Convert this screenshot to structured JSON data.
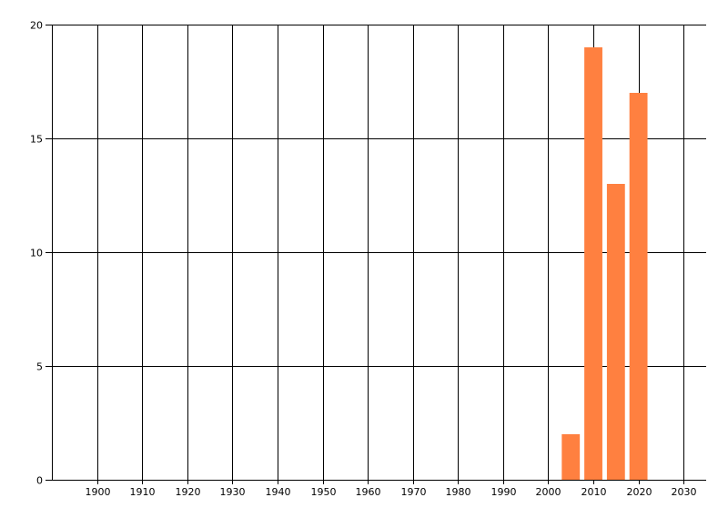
{
  "chart_data": {
    "type": "bar",
    "title": "",
    "xlabel": "",
    "ylabel": "",
    "x": [
      2005,
      2010,
      2015,
      2020
    ],
    "values": [
      2,
      19,
      13,
      17
    ],
    "bar_width_years": 4,
    "xlim": [
      1890,
      2035
    ],
    "ylim": [
      0,
      20
    ],
    "xticks": [
      1900,
      1910,
      1920,
      1930,
      1940,
      1950,
      1960,
      1970,
      1980,
      1990,
      2000,
      2010,
      2020,
      2030
    ],
    "yticks": [
      0,
      5,
      10,
      15,
      20
    ],
    "grid": true,
    "legend": "none",
    "bar_color": "#FF8040",
    "grid_color": "#000000"
  }
}
